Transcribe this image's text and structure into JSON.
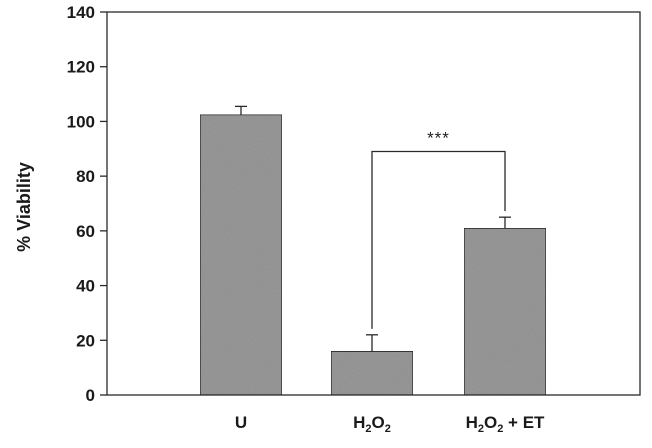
{
  "chart_data": {
    "type": "bar",
    "categories": [
      "U",
      "H2O2",
      "H2O2 + ET"
    ],
    "category_labels": [
      [
        {
          "t": "U",
          "sub": false
        }
      ],
      [
        {
          "t": "H",
          "sub": false
        },
        {
          "t": "2",
          "sub": true
        },
        {
          "t": "O",
          "sub": false
        },
        {
          "t": "2",
          "sub": true
        }
      ],
      [
        {
          "t": "H",
          "sub": false
        },
        {
          "t": "2",
          "sub": true
        },
        {
          "t": "O",
          "sub": false
        },
        {
          "t": "2",
          "sub": true
        },
        {
          "t": " + ET",
          "sub": false
        }
      ]
    ],
    "values": [
      102.5,
      16,
      61
    ],
    "errors": [
      3,
      6,
      4
    ],
    "title": "",
    "xlabel": "",
    "ylabel": "% Viability",
    "ylim": [
      0,
      140
    ],
    "yticks": [
      0,
      20,
      40,
      60,
      80,
      100,
      120,
      140
    ],
    "grid": false,
    "bar_color": "#9a9a9a",
    "annotations": [
      {
        "from_category": 1,
        "to_category": 2,
        "text": "***"
      }
    ]
  }
}
